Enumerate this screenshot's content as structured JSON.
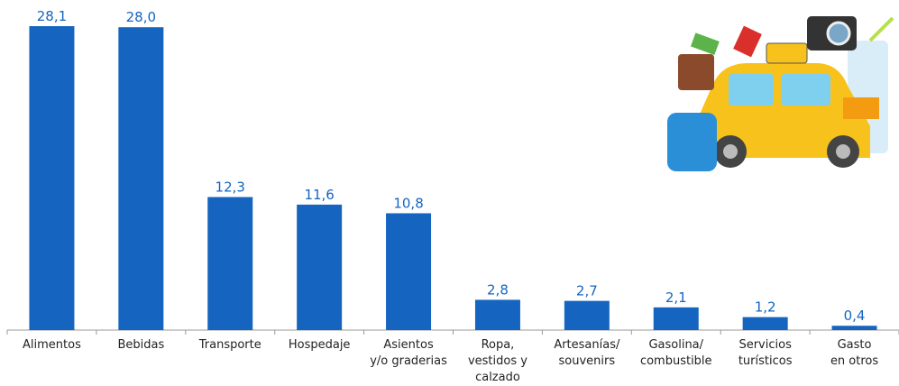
{
  "chart_data": {
    "type": "bar",
    "categories": [
      "Alimentos",
      "Bebidas",
      "Transporte",
      "Hospedaje",
      "Asientos\ny/o graderias",
      "Ropa,\nvestidos y\ncalzado",
      "Artesanías/\nsouvenirs",
      "Gasolina/\ncombustible",
      "Servicios\nturísticos",
      "Gasto\nen otros"
    ],
    "values": [
      28.1,
      28.0,
      12.3,
      11.6,
      10.8,
      2.8,
      2.7,
      2.1,
      1.2,
      0.4
    ],
    "value_labels": [
      "28,1",
      "28,0",
      "12,3",
      "11,6",
      "10,8",
      "2,8",
      "2,7",
      "2,1",
      "1,2",
      "0,4"
    ],
    "color": "#1565c0"
  }
}
